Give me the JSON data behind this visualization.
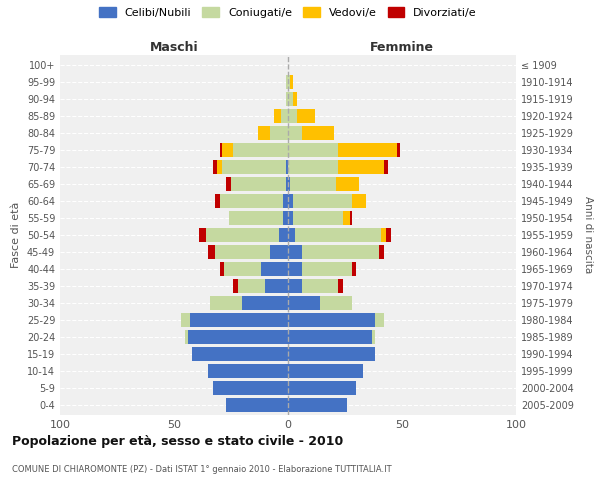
{
  "age_groups": [
    "0-4",
    "5-9",
    "10-14",
    "15-19",
    "20-24",
    "25-29",
    "30-34",
    "35-39",
    "40-44",
    "45-49",
    "50-54",
    "55-59",
    "60-64",
    "65-69",
    "70-74",
    "75-79",
    "80-84",
    "85-89",
    "90-94",
    "95-99",
    "100+"
  ],
  "birth_years": [
    "2005-2009",
    "2000-2004",
    "1995-1999",
    "1990-1994",
    "1985-1989",
    "1980-1984",
    "1975-1979",
    "1970-1974",
    "1965-1969",
    "1960-1964",
    "1955-1959",
    "1950-1954",
    "1945-1949",
    "1940-1944",
    "1935-1939",
    "1930-1934",
    "1925-1929",
    "1920-1924",
    "1915-1919",
    "1910-1914",
    "≤ 1909"
  ],
  "males": {
    "celibi": [
      27,
      33,
      35,
      42,
      44,
      43,
      20,
      10,
      12,
      8,
      4,
      2,
      2,
      1,
      1,
      0,
      0,
      0,
      0,
      0,
      0
    ],
    "coniugati": [
      0,
      0,
      0,
      0,
      1,
      4,
      14,
      12,
      16,
      24,
      32,
      24,
      28,
      24,
      28,
      24,
      8,
      3,
      1,
      1,
      0
    ],
    "vedovi": [
      0,
      0,
      0,
      0,
      0,
      0,
      0,
      0,
      0,
      0,
      0,
      0,
      0,
      0,
      2,
      5,
      5,
      3,
      0,
      0,
      0
    ],
    "divorziati": [
      0,
      0,
      0,
      0,
      0,
      0,
      0,
      2,
      2,
      3,
      3,
      0,
      2,
      2,
      2,
      1,
      0,
      0,
      0,
      0,
      0
    ]
  },
  "females": {
    "nubili": [
      26,
      30,
      33,
      38,
      37,
      38,
      14,
      6,
      6,
      6,
      3,
      2,
      2,
      1,
      0,
      0,
      0,
      0,
      0,
      0,
      0
    ],
    "coniugate": [
      0,
      0,
      0,
      0,
      1,
      4,
      14,
      16,
      22,
      34,
      38,
      22,
      26,
      20,
      22,
      22,
      6,
      4,
      2,
      1,
      0
    ],
    "vedove": [
      0,
      0,
      0,
      0,
      0,
      0,
      0,
      0,
      0,
      0,
      2,
      3,
      6,
      10,
      20,
      26,
      14,
      8,
      2,
      1,
      0
    ],
    "divorziate": [
      0,
      0,
      0,
      0,
      0,
      0,
      0,
      2,
      2,
      2,
      2,
      1,
      0,
      0,
      2,
      1,
      0,
      0,
      0,
      0,
      0
    ]
  },
  "colors": {
    "celibi_nubili": "#4472c4",
    "coniugati_e": "#c5d9a0",
    "vedovi_e": "#ffc000",
    "divorziati_e": "#c00000"
  },
  "xlim": 100,
  "title": "Popolazione per età, sesso e stato civile - 2010",
  "subtitle": "COMUNE DI CHIAROMONTE (PZ) - Dati ISTAT 1° gennaio 2010 - Elaborazione TUTTITALIA.IT",
  "ylabel_left": "Fasce di età",
  "ylabel_right": "Anni di nascita",
  "xlabel_left": "Maschi",
  "xlabel_right": "Femmine",
  "legend_labels": [
    "Celibi/Nubili",
    "Coniugati/e",
    "Vedovi/e",
    "Divorziati/e"
  ],
  "bg_color": "#f0f0f0"
}
